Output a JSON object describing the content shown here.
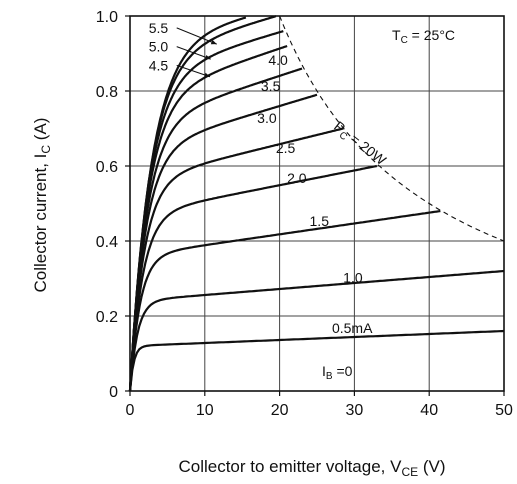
{
  "chart_data": {
    "type": "line",
    "xlabel": "Collector to emitter voltage, V",
    "xlabel_sub": "CE",
    "xlabel_unit": "(V)",
    "ylabel": "Collector current, I",
    "ylabel_sub": "C",
    "ylabel_unit": "(A)",
    "xlim": [
      0,
      50
    ],
    "ylim": [
      0,
      1.0
    ],
    "x_ticks": [
      0,
      10,
      20,
      30,
      40,
      50
    ],
    "x_tick_labels": [
      "0",
      "10",
      "20",
      "30",
      "40",
      "50"
    ],
    "y_ticks": [
      0,
      0.2,
      0.4,
      0.6,
      0.8,
      1.0
    ],
    "y_tick_labels": [
      "0",
      "0.2",
      "0.4",
      "0.6",
      "0.8",
      "1.0"
    ],
    "grid": true,
    "condition": {
      "prefix": "T",
      "sub": "C",
      "text": " = 25°C"
    },
    "power_limit": {
      "label_prefix": "P",
      "label_sub": "C",
      "label_text": " = 20W",
      "watts": 20
    },
    "ib_zero_label": {
      "prefix": "I",
      "sub": "B",
      "text": " =0"
    },
    "series": [
      {
        "name": "0.5mA",
        "knee_v": 1.5,
        "plateau": 0.12,
        "end_v": 50,
        "end_i": 0.16
      },
      {
        "name": "1.0",
        "knee_v": 3,
        "plateau": 0.24,
        "end_v": 50,
        "end_i": 0.32
      },
      {
        "name": "1.5",
        "knee_v": 4,
        "plateau": 0.36,
        "end_v": 41.5,
        "end_i": 0.48
      },
      {
        "name": "2.0",
        "knee_v": 5,
        "plateau": 0.47,
        "end_v": 33,
        "end_i": 0.6
      },
      {
        "name": "2.5",
        "knee_v": 5.5,
        "plateau": 0.56,
        "end_v": 28.5,
        "end_i": 0.7
      },
      {
        "name": "3.0",
        "knee_v": 6,
        "plateau": 0.64,
        "end_v": 25,
        "end_i": 0.79
      },
      {
        "name": "3.5",
        "knee_v": 6.5,
        "plateau": 0.71,
        "end_v": 23,
        "end_i": 0.86
      },
      {
        "name": "4.0",
        "knee_v": 7,
        "plateau": 0.78,
        "end_v": 21,
        "end_i": 0.92
      },
      {
        "name": "4.5",
        "knee_v": 7.5,
        "plateau": 0.84,
        "end_v": 20.5,
        "end_i": 0.96
      },
      {
        "name": "5.0",
        "knee_v": 8,
        "plateau": 0.89,
        "end_v": 19.5,
        "end_i": 1.0
      },
      {
        "name": "5.5",
        "knee_v": 8.5,
        "plateau": 0.93,
        "end_v": 15.5,
        "end_i": 1.0
      }
    ]
  }
}
